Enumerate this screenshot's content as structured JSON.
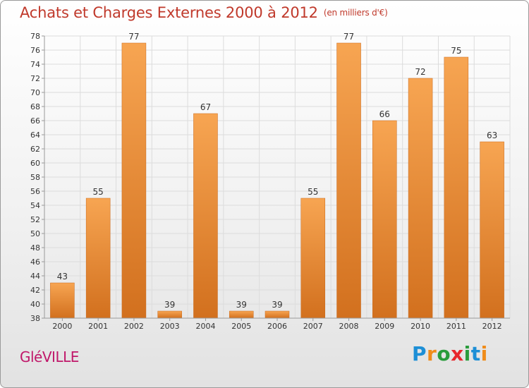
{
  "header": {
    "title": "Achats et Charges Externes 2000 à 2012",
    "unit": "(en milliers d'€)"
  },
  "footer": {
    "town": "GléVILLE",
    "brand": "Proxiti",
    "brand_letters": [
      {
        "char": "P",
        "color": "#1d8fd6"
      },
      {
        "char": "r",
        "color": "#f08c1a"
      },
      {
        "char": "o",
        "color": "#2a9c3c"
      },
      {
        "char": "x",
        "color": "#e8262d"
      },
      {
        "char": "i",
        "color": "#2a9c3c"
      },
      {
        "char": "t",
        "color": "#1d8fd6"
      },
      {
        "char": "i",
        "color": "#f08c1a"
      }
    ]
  },
  "colors": {
    "bar_light": "#f7a552",
    "bar_dark": "#d2701e",
    "axis": "#9a9a9a",
    "grid": "#dcdcdc",
    "text": "#333333"
  },
  "chart_data": {
    "type": "bar",
    "title": "Achats et Charges Externes 2000 à 2012",
    "subtitle": "(en milliers d'€)",
    "xlabel": "",
    "ylabel": "",
    "categories": [
      "2000",
      "2001",
      "2002",
      "2003",
      "2004",
      "2005",
      "2006",
      "2007",
      "2008",
      "2009",
      "2010",
      "2011",
      "2012"
    ],
    "values": [
      43,
      55,
      77,
      39,
      67,
      39,
      39,
      55,
      77,
      66,
      72,
      75,
      63
    ],
    "ylim": [
      38,
      78
    ],
    "yticks": [
      38,
      40,
      42,
      44,
      46,
      48,
      50,
      52,
      54,
      56,
      58,
      60,
      62,
      64,
      66,
      68,
      70,
      72,
      74,
      76,
      78
    ],
    "grid": true,
    "legend": "none"
  }
}
